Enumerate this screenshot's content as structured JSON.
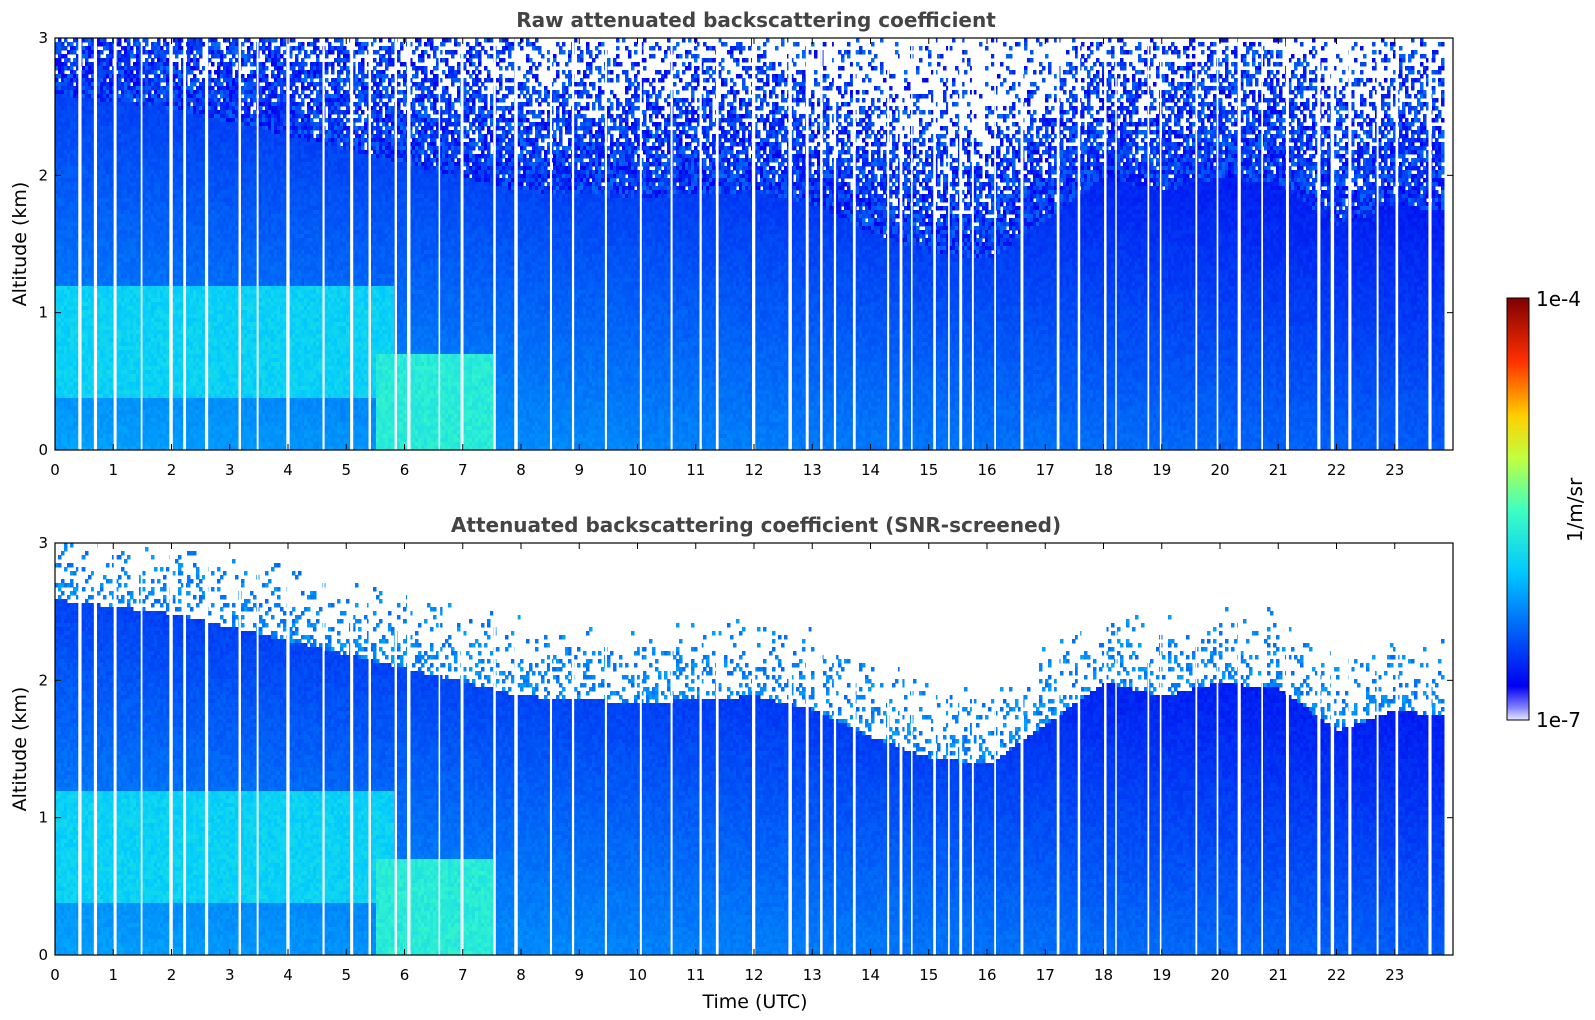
{
  "chart_data": [
    {
      "type": "heatmap",
      "title": "Raw attenuated backscattering coefficient",
      "xlabel": "",
      "ylabel": "Altitude (km)",
      "xlim": [
        0,
        24
      ],
      "ylim": [
        0,
        3
      ],
      "xticks": [
        "0",
        "1",
        "2",
        "3",
        "4",
        "5",
        "6",
        "7",
        "8",
        "9",
        "10",
        "11",
        "12",
        "13",
        "14",
        "15",
        "16",
        "17",
        "18",
        "19",
        "20",
        "21",
        "22",
        "23"
      ],
      "yticks": [
        "0",
        "1",
        "2",
        "3"
      ],
      "data_end_hour": 23.8,
      "signal_top_km": [
        [
          0,
          2.6
        ],
        [
          2,
          2.5
        ],
        [
          4,
          2.3
        ],
        [
          6,
          2.1
        ],
        [
          8,
          1.9
        ],
        [
          10,
          1.85
        ],
        [
          12,
          1.9
        ],
        [
          13,
          1.8
        ],
        [
          14,
          1.6
        ],
        [
          15,
          1.45
        ],
        [
          16,
          1.4
        ],
        [
          17,
          1.7
        ],
        [
          18,
          2.0
        ],
        [
          19,
          1.9
        ],
        [
          20,
          2.0
        ],
        [
          21,
          1.95
        ],
        [
          22,
          1.65
        ],
        [
          23,
          1.8
        ],
        [
          23.8,
          1.75
        ]
      ],
      "aerosol_layers": [
        {
          "from_h": 0,
          "to_h": 5.8,
          "bottom_km": 0.4,
          "top_km": 1.2,
          "level": 0.55
        },
        {
          "from_h": 5.5,
          "to_h": 7.5,
          "bottom_km": 0.0,
          "top_km": 0.7,
          "level": 0.62
        }
      ],
      "screened": false
    },
    {
      "type": "heatmap",
      "title": "Attenuated backscattering coefficient (SNR-screened)",
      "xlabel": "Time (UTC)",
      "ylabel": "Altitude (km)",
      "xlim": [
        0,
        24
      ],
      "ylim": [
        0,
        3
      ],
      "xticks": [
        "0",
        "1",
        "2",
        "3",
        "4",
        "5",
        "6",
        "7",
        "8",
        "9",
        "10",
        "11",
        "12",
        "13",
        "14",
        "15",
        "16",
        "17",
        "18",
        "19",
        "20",
        "21",
        "22",
        "23"
      ],
      "yticks": [
        "0",
        "1",
        "2",
        "3"
      ],
      "data_end_hour": 23.8,
      "signal_top_km": [
        [
          0,
          2.6
        ],
        [
          2,
          2.5
        ],
        [
          4,
          2.3
        ],
        [
          6,
          2.1
        ],
        [
          8,
          1.9
        ],
        [
          10,
          1.85
        ],
        [
          12,
          1.9
        ],
        [
          13,
          1.8
        ],
        [
          14,
          1.6
        ],
        [
          15,
          1.45
        ],
        [
          16,
          1.4
        ],
        [
          17,
          1.7
        ],
        [
          18,
          2.0
        ],
        [
          19,
          1.9
        ],
        [
          20,
          2.0
        ],
        [
          21,
          1.95
        ],
        [
          22,
          1.65
        ],
        [
          23,
          1.8
        ],
        [
          23.8,
          1.75
        ]
      ],
      "aerosol_layers": [
        {
          "from_h": 0,
          "to_h": 5.8,
          "bottom_km": 0.4,
          "top_km": 1.2,
          "level": 0.55
        },
        {
          "from_h": 5.5,
          "to_h": 7.5,
          "bottom_km": 0.0,
          "top_km": 0.7,
          "level": 0.62
        }
      ],
      "screened": true
    }
  ],
  "colorbar": {
    "max_label": "1e-4",
    "min_label": "1e-7",
    "units_label": "1/m/sr",
    "scale": "log",
    "range": [
      1e-07,
      0.0001
    ]
  }
}
